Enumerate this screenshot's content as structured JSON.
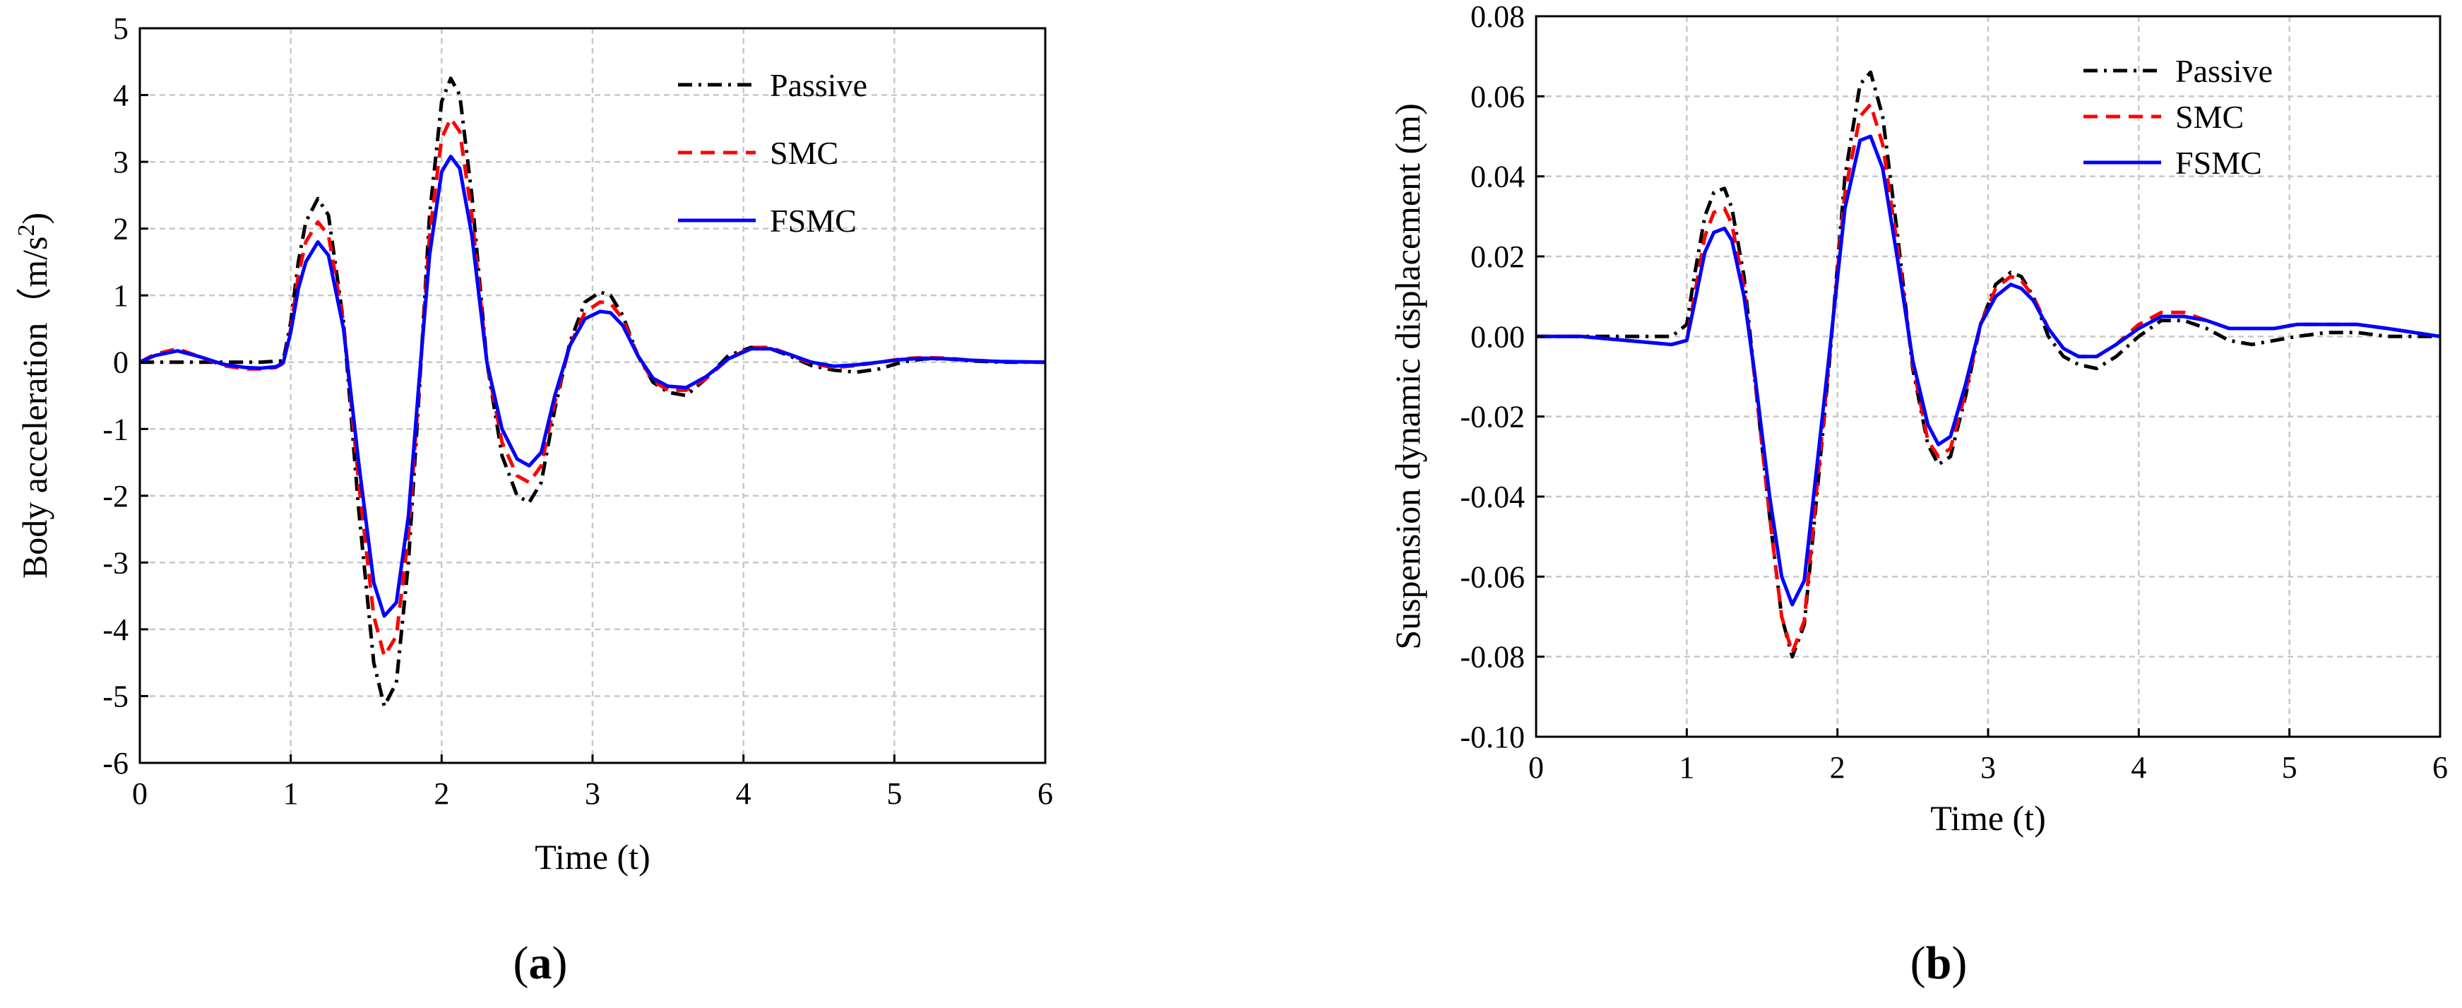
{
  "chart_data": [
    {
      "type": "line",
      "panel_label": "a",
      "title": "",
      "xlabel": "Time (t)",
      "ylabel": "Body acceleration（m/s",
      "ylabel_superscript": "2",
      "ylabel_close": ")",
      "xlim": [
        0,
        6
      ],
      "ylim": [
        -6,
        5
      ],
      "xticks": [
        0,
        1,
        2,
        3,
        4,
        5,
        6
      ],
      "yticks": [
        -6,
        -5,
        -4,
        -3,
        -2,
        -1,
        0,
        1,
        2,
        3,
        4,
        5
      ],
      "grid": true,
      "legend_position": "top-right",
      "series": [
        {
          "name": "Passive",
          "color": "#000000",
          "style": "dashdot",
          "x": [
            0,
            0.2,
            0.4,
            0.6,
            0.8,
            0.95,
            1.0,
            1.05,
            1.1,
            1.18,
            1.25,
            1.35,
            1.45,
            1.55,
            1.62,
            1.7,
            1.78,
            1.85,
            1.92,
            2.0,
            2.06,
            2.12,
            2.2,
            2.3,
            2.4,
            2.5,
            2.58,
            2.66,
            2.75,
            2.85,
            2.95,
            3.05,
            3.12,
            3.2,
            3.3,
            3.4,
            3.5,
            3.62,
            3.75,
            3.9,
            4.05,
            4.18,
            4.3,
            4.45,
            4.6,
            4.75,
            4.9,
            5.05,
            5.2,
            5.35,
            5.5,
            5.7,
            6.0
          ],
          "values": [
            0,
            0,
            0,
            0,
            0,
            0.02,
            0.6,
            1.5,
            2.1,
            2.45,
            2.2,
            0.6,
            -2.2,
            -4.5,
            -5.15,
            -4.8,
            -3.0,
            -0.5,
            2.2,
            3.9,
            4.25,
            4.0,
            2.5,
            0.0,
            -1.4,
            -2.0,
            -2.1,
            -1.8,
            -0.7,
            0.3,
            0.9,
            1.05,
            1.0,
            0.7,
            0.1,
            -0.3,
            -0.45,
            -0.5,
            -0.25,
            0.1,
            0.22,
            0.2,
            0.1,
            -0.05,
            -0.12,
            -0.15,
            -0.1,
            0.0,
            0.05,
            0.05,
            0.02,
            0.0,
            0.0
          ]
        },
        {
          "name": "SMC",
          "color": "#ff0000",
          "style": "dashed",
          "x": [
            0,
            0.1,
            0.25,
            0.4,
            0.55,
            0.7,
            0.8,
            0.9,
            0.95,
            1.0,
            1.05,
            1.1,
            1.18,
            1.25,
            1.35,
            1.45,
            1.55,
            1.62,
            1.7,
            1.78,
            1.85,
            1.92,
            2.0,
            2.06,
            2.12,
            2.2,
            2.3,
            2.4,
            2.5,
            2.58,
            2.66,
            2.75,
            2.85,
            2.95,
            3.05,
            3.12,
            3.2,
            3.3,
            3.4,
            3.5,
            3.62,
            3.75,
            3.9,
            4.05,
            4.18,
            4.3,
            4.45,
            4.6,
            4.75,
            4.9,
            5.05,
            5.2,
            5.35,
            5.5,
            5.7,
            6.0
          ],
          "values": [
            0,
            0.12,
            0.2,
            0.08,
            -0.05,
            -0.1,
            -0.1,
            -0.08,
            -0.02,
            0.5,
            1.3,
            1.8,
            2.1,
            1.9,
            0.6,
            -1.8,
            -3.8,
            -4.4,
            -4.1,
            -2.6,
            -0.4,
            1.9,
            3.35,
            3.65,
            3.45,
            2.2,
            0.0,
            -1.2,
            -1.7,
            -1.8,
            -1.55,
            -0.6,
            0.25,
            0.75,
            0.9,
            0.88,
            0.65,
            0.1,
            -0.28,
            -0.42,
            -0.42,
            -0.25,
            0.05,
            0.22,
            0.22,
            0.12,
            -0.02,
            -0.08,
            -0.05,
            0.0,
            0.05,
            0.07,
            0.06,
            0.03,
            0.01,
            0.0
          ]
        },
        {
          "name": "FSMC",
          "color": "#0000ff",
          "style": "solid",
          "x": [
            0,
            0.1,
            0.25,
            0.4,
            0.55,
            0.7,
            0.8,
            0.9,
            0.95,
            1.0,
            1.05,
            1.1,
            1.18,
            1.25,
            1.35,
            1.45,
            1.55,
            1.62,
            1.7,
            1.78,
            1.85,
            1.92,
            2.0,
            2.06,
            2.12,
            2.2,
            2.3,
            2.4,
            2.5,
            2.58,
            2.66,
            2.75,
            2.85,
            2.95,
            3.05,
            3.12,
            3.2,
            3.3,
            3.4,
            3.5,
            3.62,
            3.75,
            3.9,
            4.05,
            4.18,
            4.3,
            4.45,
            4.6,
            4.75,
            4.9,
            5.05,
            5.2,
            5.35,
            5.5,
            5.7,
            6.0
          ],
          "values": [
            0,
            0.1,
            0.17,
            0.08,
            -0.03,
            -0.08,
            -0.09,
            -0.07,
            -0.01,
            0.45,
            1.1,
            1.5,
            1.8,
            1.6,
            0.5,
            -1.5,
            -3.3,
            -3.8,
            -3.6,
            -2.3,
            -0.3,
            1.6,
            2.85,
            3.08,
            2.9,
            1.9,
            0.0,
            -1.0,
            -1.45,
            -1.55,
            -1.35,
            -0.5,
            0.25,
            0.65,
            0.76,
            0.74,
            0.55,
            0.1,
            -0.24,
            -0.36,
            -0.38,
            -0.22,
            0.05,
            0.2,
            0.2,
            0.12,
            0.0,
            -0.06,
            -0.04,
            0.0,
            0.04,
            0.06,
            0.05,
            0.03,
            0.01,
            0.0
          ]
        }
      ]
    },
    {
      "type": "line",
      "panel_label": "b",
      "title": "",
      "xlabel": "Time (t)",
      "ylabel": "Suspension dynamic displacement (m)",
      "xlim": [
        0,
        6
      ],
      "ylim": [
        -0.1,
        0.08
      ],
      "xticks": [
        0,
        1,
        2,
        3,
        4,
        5,
        6
      ],
      "yticks": [
        -0.1,
        -0.08,
        -0.06,
        -0.04,
        -0.02,
        0.0,
        0.02,
        0.04,
        0.06,
        0.08
      ],
      "ytick_labels": [
        "-0.10",
        "-0.08",
        "-0.06",
        "-0.04",
        "-0.02",
        "0.00",
        "0.02",
        "0.04",
        "0.06",
        "0.08"
      ],
      "grid": true,
      "legend_position": "top-right",
      "series": [
        {
          "name": "Passive",
          "color": "#000000",
          "style": "dashdot",
          "x": [
            0,
            0.3,
            0.6,
            0.9,
            1.0,
            1.05,
            1.12,
            1.18,
            1.25,
            1.3,
            1.38,
            1.45,
            1.55,
            1.63,
            1.7,
            1.78,
            1.85,
            1.95,
            2.05,
            2.15,
            2.22,
            2.3,
            2.4,
            2.5,
            2.6,
            2.67,
            2.75,
            2.85,
            2.95,
            3.05,
            3.15,
            3.22,
            3.3,
            3.4,
            3.5,
            3.6,
            3.72,
            3.85,
            4.0,
            4.15,
            4.3,
            4.45,
            4.6,
            4.75,
            4.9,
            5.05,
            5.25,
            5.45,
            5.65,
            6.0
          ],
          "values": [
            0,
            0,
            0,
            0,
            0.003,
            0.015,
            0.03,
            0.036,
            0.037,
            0.032,
            0.015,
            -0.01,
            -0.045,
            -0.07,
            -0.08,
            -0.072,
            -0.045,
            -0.005,
            0.04,
            0.063,
            0.066,
            0.055,
            0.025,
            -0.008,
            -0.027,
            -0.032,
            -0.03,
            -0.015,
            0.003,
            0.013,
            0.016,
            0.015,
            0.01,
            0.0,
            -0.005,
            -0.007,
            -0.008,
            -0.005,
            0.0,
            0.004,
            0.004,
            0.002,
            -0.001,
            -0.002,
            -0.001,
            0.0,
            0.001,
            0.001,
            0.0,
            0.0
          ]
        },
        {
          "name": "SMC",
          "color": "#ff0000",
          "style": "dashed",
          "x": [
            0,
            0.3,
            0.6,
            0.9,
            1.0,
            1.05,
            1.12,
            1.18,
            1.25,
            1.3,
            1.38,
            1.45,
            1.55,
            1.63,
            1.7,
            1.78,
            1.85,
            1.95,
            2.05,
            2.15,
            2.22,
            2.3,
            2.4,
            2.5,
            2.6,
            2.67,
            2.75,
            2.85,
            2.95,
            3.05,
            3.15,
            3.22,
            3.3,
            3.4,
            3.5,
            3.6,
            3.72,
            3.85,
            4.0,
            4.15,
            4.3,
            4.45,
            4.6,
            4.75,
            4.9,
            5.05,
            5.25,
            5.45,
            5.65,
            6.0
          ],
          "values": [
            0,
            0,
            -0.001,
            -0.002,
            -0.001,
            0.01,
            0.025,
            0.031,
            0.032,
            0.028,
            0.012,
            -0.01,
            -0.045,
            -0.07,
            -0.079,
            -0.071,
            -0.043,
            -0.004,
            0.036,
            0.055,
            0.058,
            0.048,
            0.022,
            -0.007,
            -0.026,
            -0.03,
            -0.028,
            -0.014,
            0.003,
            0.012,
            0.015,
            0.014,
            0.01,
            0.002,
            -0.003,
            -0.005,
            -0.005,
            -0.002,
            0.003,
            0.006,
            0.006,
            0.004,
            0.002,
            0.002,
            0.002,
            0.003,
            0.003,
            0.003,
            0.002,
            0.0
          ]
        },
        {
          "name": "FSMC",
          "color": "#0000ff",
          "style": "solid",
          "x": [
            0,
            0.3,
            0.6,
            0.9,
            1.0,
            1.05,
            1.12,
            1.18,
            1.25,
            1.3,
            1.38,
            1.45,
            1.55,
            1.63,
            1.7,
            1.78,
            1.85,
            1.95,
            2.05,
            2.15,
            2.22,
            2.3,
            2.4,
            2.5,
            2.6,
            2.67,
            2.75,
            2.85,
            2.95,
            3.05,
            3.15,
            3.22,
            3.3,
            3.4,
            3.5,
            3.6,
            3.72,
            3.85,
            4.0,
            4.15,
            4.3,
            4.45,
            4.6,
            4.75,
            4.9,
            5.05,
            5.25,
            5.45,
            5.65,
            6.0
          ],
          "values": [
            0,
            0,
            -0.001,
            -0.002,
            -0.001,
            0.008,
            0.021,
            0.026,
            0.027,
            0.024,
            0.01,
            -0.009,
            -0.04,
            -0.06,
            -0.067,
            -0.061,
            -0.037,
            -0.003,
            0.032,
            0.049,
            0.05,
            0.042,
            0.019,
            -0.006,
            -0.022,
            -0.027,
            -0.025,
            -0.012,
            0.003,
            0.01,
            0.013,
            0.012,
            0.009,
            0.002,
            -0.003,
            -0.005,
            -0.005,
            -0.002,
            0.002,
            0.005,
            0.005,
            0.004,
            0.002,
            0.002,
            0.002,
            0.003,
            0.003,
            0.003,
            0.002,
            0.0
          ]
        }
      ]
    }
  ]
}
